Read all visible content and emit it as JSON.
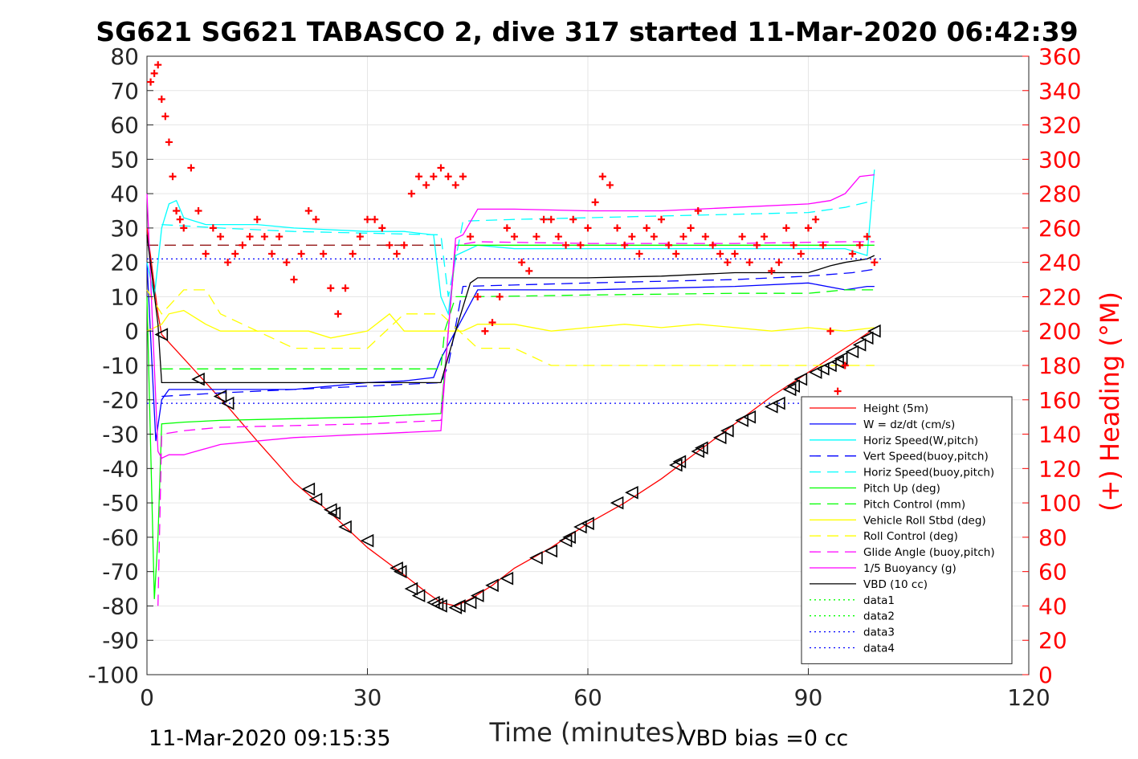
{
  "chart_data": {
    "type": "line",
    "title": "SG621 SG621 TABASCO 2, dive 317 started 11-Mar-2020 06:42:39",
    "xlabel": "Time (minutes)",
    "ylabel_right": "(+) Heading (°M)",
    "xlim": [
      0,
      120
    ],
    "ylim": [
      -100,
      80
    ],
    "ylim_right": [
      0,
      360
    ],
    "xticks": [
      "0",
      "30",
      "60",
      "90",
      "120"
    ],
    "yticks": [
      "80",
      "70",
      "60",
      "50",
      "40",
      "30",
      "20",
      "10",
      "0",
      "-10",
      "-20",
      "-30",
      "-40",
      "-50",
      "-60",
      "-70",
      "-80",
      "-90",
      "-100"
    ],
    "yticks_right": [
      "360",
      "340",
      "320",
      "300",
      "280",
      "260",
      "240",
      "220",
      "200",
      "180",
      "160",
      "140",
      "120",
      "100",
      "80",
      "60",
      "40",
      "20",
      "0"
    ],
    "grid": true,
    "legend_position": "bottom-right",
    "footer_left": "11-Mar-2020 09:15:35",
    "footer_right": "VBD bias =0 cc",
    "colors": {
      "red": "#ff0000",
      "blue": "#0000ff",
      "cyan": "#00ffff",
      "navy": "#00008b",
      "green": "#00ff00",
      "yellow": "#ffff00",
      "magenta": "#ff00ff",
      "black": "#000000"
    },
    "series": [
      {
        "name": "Height (5m)",
        "color": "#ff0000",
        "style": "solid",
        "x": [
          0,
          1.5,
          2,
          5,
          8,
          11,
          15,
          20,
          25,
          30,
          35,
          38,
          40,
          42,
          44,
          47,
          50,
          55,
          60,
          65,
          70,
          75,
          80,
          85,
          90,
          95,
          98.5
        ],
        "y": [
          30,
          5,
          -1,
          -8,
          -15,
          -22,
          -32,
          -44,
          -53,
          -63,
          -71,
          -76,
          -79,
          -80,
          -78,
          -74,
          -69,
          -63,
          -56,
          -50,
          -43,
          -35,
          -27,
          -19,
          -12,
          -5,
          0
        ]
      },
      {
        "name": "W = dz/dt (cm/s)",
        "color": "#0000ff",
        "style": "solid",
        "x": [
          0,
          1.2,
          2,
          3,
          5,
          8,
          15,
          20,
          25,
          30,
          35,
          39,
          40,
          42,
          45,
          50,
          60,
          70,
          80,
          90,
          95,
          98,
          99
        ],
        "y": [
          20,
          -32,
          -20,
          -17,
          -17,
          -17,
          -17,
          -17,
          -16,
          -15,
          -14.5,
          -13.5,
          -8,
          0,
          12,
          12,
          12,
          12.5,
          13,
          14,
          12,
          13,
          13
        ]
      },
      {
        "name": "Horiz Speed(W,pitch)",
        "color": "#00ffff",
        "style": "solid",
        "x": [
          0,
          1,
          2,
          3,
          4,
          5,
          8,
          15,
          20,
          30,
          35,
          39,
          40,
          41,
          42,
          45,
          50,
          60,
          70,
          80,
          90,
          95,
          98,
          99
        ],
        "y": [
          20,
          10,
          30,
          37,
          38,
          33,
          31,
          31,
          30,
          29,
          29,
          28,
          10,
          5,
          22,
          25,
          24,
          24,
          24,
          24,
          24,
          24,
          22,
          47
        ]
      },
      {
        "name": "Vert Speed(buoy,pitch)",
        "color": "#0000ff",
        "style": "dashed",
        "x": [
          2,
          10,
          20,
          30,
          40,
          41,
          43,
          60,
          80,
          90,
          96,
          99
        ],
        "y": [
          -19,
          -18,
          -17,
          -16,
          -15,
          -10,
          13,
          14,
          15,
          16,
          17,
          18
        ]
      },
      {
        "name": "Horiz Speed(buoy,pitch)",
        "color": "#00ffff",
        "style": "dashed",
        "x": [
          2,
          10,
          20,
          30,
          40,
          41,
          43,
          50,
          60,
          70,
          80,
          90,
          95,
          99
        ],
        "y": [
          31,
          30,
          29,
          28.5,
          28,
          10,
          32,
          32.5,
          33,
          33.5,
          34,
          34.5,
          36,
          38
        ]
      },
      {
        "name": "Pitch Up (deg)",
        "color": "#00ff00",
        "style": "solid",
        "x": [
          0,
          1,
          1.5,
          2,
          5,
          10,
          20,
          30,
          40,
          41,
          42,
          45,
          60,
          80,
          95,
          99
        ],
        "y": [
          10,
          -78,
          -60,
          -27,
          -26.5,
          -26,
          -25.5,
          -25,
          -24,
          0,
          25,
          25,
          25,
          25,
          25,
          25
        ]
      },
      {
        "name": "Pitch Control (mm)",
        "color": "#00ff00",
        "style": "dashed",
        "x": [
          2,
          40,
          40.5,
          42,
          45,
          60,
          80,
          90,
          95,
          99
        ],
        "y": [
          -11,
          -11,
          0,
          10,
          10,
          10.5,
          11,
          11,
          12,
          12
        ]
      },
      {
        "name": "Vehicle Roll Stbd (deg)",
        "color": "#ffff00",
        "style": "solid",
        "x": [
          0,
          2,
          3,
          5,
          8,
          10,
          15,
          20,
          22,
          25,
          30,
          33,
          35,
          40,
          43,
          45,
          50,
          55,
          60,
          65,
          70,
          75,
          80,
          85,
          90,
          95,
          99
        ],
        "y": [
          0,
          2,
          5,
          6,
          2,
          0,
          0,
          0,
          0,
          -2,
          0,
          5,
          0,
          0,
          0,
          2,
          2,
          0,
          1,
          2,
          1,
          2,
          1,
          0,
          1,
          0,
          1
        ]
      },
      {
        "name": "Roll Control (deg)",
        "color": "#ffff00",
        "style": "dashed",
        "x": [
          0,
          2,
          5,
          8,
          10,
          20,
          25,
          30,
          35,
          40,
          45,
          50,
          55,
          60,
          65,
          70,
          75,
          80,
          85,
          90,
          95,
          99
        ],
        "y": [
          12,
          5,
          12,
          12,
          5,
          -5,
          -5,
          -5,
          5,
          5,
          -5,
          -5,
          -10,
          -10,
          -10,
          -10,
          -10,
          -10,
          -10,
          -10,
          -10,
          -10
        ]
      },
      {
        "name": "Glide Angle (buoy,pitch)",
        "color": "#ff00ff",
        "style": "dashed",
        "x": [
          1.5,
          2,
          5,
          10,
          20,
          30,
          40,
          41,
          42,
          45,
          60,
          80,
          95,
          99
        ],
        "y": [
          -80,
          -30,
          -29,
          -28,
          -27.5,
          -27,
          -26,
          0,
          25,
          26,
          25.5,
          25.5,
          26,
          26
        ]
      },
      {
        "name": "1/5 Buoyancy (g)",
        "color": "#ff00ff",
        "style": "solid",
        "x": [
          0,
          1.5,
          2,
          3,
          5,
          10,
          20,
          30,
          40,
          41,
          42,
          43,
          45,
          50,
          60,
          70,
          80,
          90,
          93,
          95,
          97,
          99
        ],
        "y": [
          40,
          -35,
          -37,
          -36,
          -36,
          -33,
          -31,
          -30,
          -29,
          0,
          27,
          28,
          35.5,
          35.5,
          35,
          35,
          36,
          37,
          38,
          40,
          45,
          45.5
        ]
      },
      {
        "name": "VBD (10 cc)",
        "color": "#000000",
        "style": "solid",
        "x": [
          0,
          1.5,
          2,
          3,
          10,
          20,
          30,
          40,
          42,
          44,
          45,
          50,
          60,
          70,
          80,
          90,
          93,
          95,
          98,
          99
        ],
        "y": [
          28,
          2,
          -15,
          -15,
          -15,
          -15,
          -15,
          -15,
          0,
          14,
          15.5,
          15.5,
          15.5,
          16,
          17,
          17,
          19,
          20,
          21,
          22
        ]
      },
      {
        "name": "data1",
        "color": "#00ff00",
        "style": "dotted",
        "x": [],
        "y": []
      },
      {
        "name": "data2",
        "color": "#00ff00",
        "style": "dotted",
        "x": [],
        "y": []
      },
      {
        "name": "data3",
        "color": "#0000ff",
        "style": "dotted",
        "x": [
          0,
          100
        ],
        "y": [
          -21,
          -21
        ]
      },
      {
        "name": "data4",
        "color": "#0000ff",
        "style": "dotted",
        "x": [
          0,
          100
        ],
        "y": [
          21,
          21
        ]
      }
    ],
    "reference_lines": [
      {
        "color": "#8b0000",
        "style": "dashed",
        "y": 25,
        "x": [
          0,
          40
        ]
      }
    ],
    "height_markers": {
      "marker": "triangle-left",
      "color": "#000000",
      "x": [
        2,
        7,
        10,
        11,
        22,
        23,
        25,
        25.5,
        27,
        30,
        34,
        34.5,
        36,
        37,
        39,
        39.5,
        40,
        42,
        42.5,
        44,
        45,
        47,
        49,
        53,
        55,
        57,
        57.5,
        59,
        60,
        64,
        66,
        72,
        72.5,
        75,
        75.5,
        78,
        79,
        81,
        82,
        85,
        86,
        87.5,
        88,
        89,
        91,
        92,
        93,
        94,
        94.5,
        96,
        97,
        98,
        99
      ],
      "y": [
        -1,
        -14,
        -19,
        -21,
        -46,
        -49,
        -52,
        -53,
        -57,
        -61,
        -69,
        -70,
        -75,
        -77,
        -79,
        -79.5,
        -80,
        -80.5,
        -80,
        -79,
        -77,
        -74,
        -72,
        -66,
        -64,
        -61,
        -60,
        -57,
        -56,
        -50,
        -47,
        -39,
        -38,
        -35,
        -34,
        -31,
        -29,
        -26,
        -25,
        -22,
        -21,
        -17,
        -16,
        -14,
        -12,
        -11,
        -10,
        -9,
        -8,
        -6,
        -4,
        -2,
        0
      ]
    },
    "heading": {
      "marker": "plus",
      "color": "#ff0000",
      "axis": "right",
      "x": [
        0.5,
        1,
        1.5,
        2,
        2.5,
        3,
        3.5,
        4,
        4.5,
        5,
        6,
        7,
        8,
        9,
        10,
        11,
        12,
        13,
        14,
        15,
        16,
        17,
        18,
        19,
        20,
        21,
        22,
        23,
        24,
        25,
        26,
        27,
        28,
        29,
        30,
        31,
        32,
        33,
        34,
        35,
        36,
        37,
        38,
        39,
        40,
        41,
        42,
        43,
        44,
        45,
        46,
        47,
        48,
        49,
        50,
        51,
        52,
        53,
        54,
        55,
        56,
        57,
        58,
        59,
        60,
        61,
        62,
        63,
        64,
        65,
        66,
        67,
        68,
        69,
        70,
        71,
        72,
        73,
        74,
        75,
        76,
        77,
        78,
        79,
        80,
        81,
        82,
        83,
        84,
        85,
        86,
        87,
        88,
        89,
        90,
        91,
        92,
        93,
        94,
        95,
        96,
        97,
        98,
        99
      ],
      "y": [
        345,
        350,
        355,
        335,
        325,
        310,
        290,
        270,
        265,
        260,
        295,
        270,
        245,
        260,
        255,
        240,
        245,
        250,
        255,
        265,
        255,
        245,
        255,
        240,
        230,
        245,
        270,
        265,
        245,
        225,
        210,
        225,
        245,
        255,
        265,
        265,
        260,
        250,
        245,
        250,
        280,
        290,
        285,
        290,
        295,
        290,
        285,
        290,
        255,
        220,
        200,
        205,
        220,
        260,
        255,
        240,
        235,
        255,
        265,
        265,
        255,
        250,
        265,
        250,
        260,
        275,
        290,
        285,
        260,
        250,
        255,
        245,
        260,
        255,
        265,
        250,
        245,
        255,
        260,
        270,
        255,
        250,
        245,
        240,
        245,
        255,
        240,
        250,
        255,
        235,
        240,
        260,
        250,
        245,
        260,
        265,
        250,
        200,
        165,
        180,
        245,
        250,
        255,
        240
      ]
    }
  }
}
